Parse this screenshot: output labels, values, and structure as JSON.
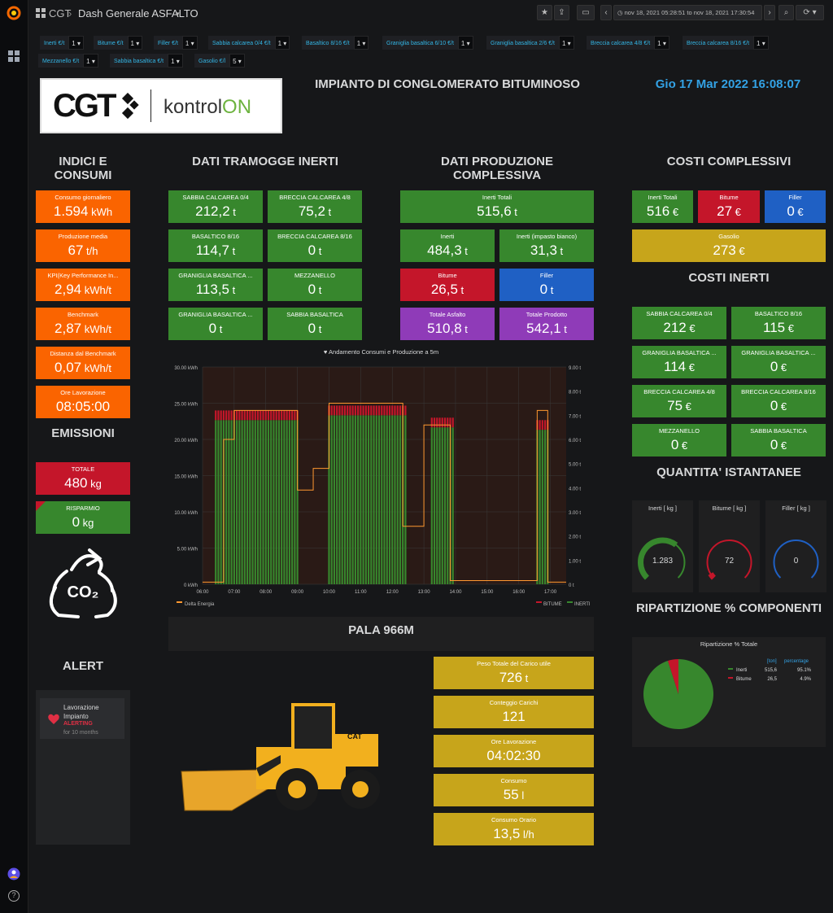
{
  "nav": {
    "folder": "CGT",
    "dashboard": "Dash Generale ASFALTO",
    "time_range": "nov 18, 2021 05:28:51 to nov 18, 2021 17:30:54"
  },
  "variables": [
    {
      "label": "Inerti €/t",
      "value": "1"
    },
    {
      "label": "Bitume €/t",
      "value": "1"
    },
    {
      "label": "Filler €/t",
      "value": "1"
    },
    {
      "label": "Sabbia calcarea 0/4 €/t",
      "value": "1"
    },
    {
      "label": "Basaltico 8/16 €/t",
      "value": "1"
    },
    {
      "label": "Graniglia basaltica 6/10 €/t",
      "value": "1"
    },
    {
      "label": "Graniglia basaltica 2/6 €/t",
      "value": "1"
    },
    {
      "label": "Breccia calcarea 4/8 €/t",
      "value": "1"
    },
    {
      "label": "Breccia calcarea 8/16 €/t",
      "value": "1"
    },
    {
      "label": "Mezzanello €/t",
      "value": "1"
    },
    {
      "label": "Sabbia basaltica €/t",
      "value": "1"
    },
    {
      "label": "Gasolio €/l",
      "value": "5"
    }
  ],
  "header": {
    "logo_cgt": "CGT",
    "logo_kontrol": "kontrol",
    "logo_on": "ON",
    "title": "IMPIANTO DI CONGLOMERATO BITUMINOSO",
    "datetime": "Gio 17 Mar 2022 16:08:07"
  },
  "sections": {
    "indici": "INDICI E CONSUMI",
    "tramogge": "DATI TRAMOGGE INERTI",
    "produzione": "DATI PRODUZIONE COMPLESSIVA",
    "costi": "COSTI COMPLESSIVI",
    "costi_inerti": "COSTI INERTI",
    "emissioni": "EMISSIONI",
    "alert": "ALERT",
    "quantita": "QUANTITA' ISTANTANEE",
    "ripartizione": "RIPARTIZIONE % COMPONENTI",
    "pala": "PALA 966M"
  },
  "indici": [
    {
      "label": "Consumo giornaliero",
      "value": "1.594",
      "unit": " kWh"
    },
    {
      "label": "Produzione media",
      "value": "67",
      "unit": " t/h"
    },
    {
      "label": "KPI(Key Performance In...",
      "value": "2,94",
      "unit": " kWh/t"
    },
    {
      "label": "Benchmark",
      "value": "2,87",
      "unit": " kWh/t"
    },
    {
      "label": "Distanza dal Benchmark",
      "value": "0,07",
      "unit": " kWh/t"
    },
    {
      "label": "Ore Lavorazione",
      "value": "08:05:00",
      "unit": ""
    }
  ],
  "emissioni": [
    {
      "label": "TOTALE",
      "value": "480",
      "unit": " kg"
    },
    {
      "label": "RISPARMIO",
      "value": "0",
      "unit": " kg"
    }
  ],
  "tramogge": [
    {
      "label": "SABBIA CALCAREA 0/4",
      "value": "212,2",
      "unit": " t"
    },
    {
      "label": "BRECCIA CALCAREA 4/8",
      "value": "75,2",
      "unit": " t"
    },
    {
      "label": "BASALTICO 8/16",
      "value": "114,7",
      "unit": " t"
    },
    {
      "label": "BRECCIA CALCAREA 8/16",
      "value": "0",
      "unit": " t"
    },
    {
      "label": "GRANIGLIA BASALTICA ...",
      "value": "113,5",
      "unit": " t"
    },
    {
      "label": "MEZZANELLO",
      "value": "0",
      "unit": " t"
    },
    {
      "label": "GRANIGLIA BASALTICA ...",
      "value": "0",
      "unit": " t"
    },
    {
      "label": "SABBIA BASALTICA",
      "value": "0",
      "unit": " t"
    }
  ],
  "produzione": [
    {
      "label": "Inerti Totali",
      "value": "515,6",
      "unit": " t"
    },
    {
      "label": "Inerti",
      "value": "484,3",
      "unit": " t"
    },
    {
      "label": "Inerti (impasto bianco)",
      "value": "31,3",
      "unit": " t"
    },
    {
      "label": "Bitume",
      "value": "26,5",
      "unit": " t"
    },
    {
      "label": "Filler",
      "value": "0",
      "unit": " t"
    },
    {
      "label": "Totale Asfalto",
      "value": "510,8",
      "unit": " t"
    },
    {
      "label": "Totale Prodotto",
      "value": "542,1",
      "unit": " t"
    }
  ],
  "costi": [
    {
      "label": "Inerti Totali",
      "value": "516",
      "unit": " €"
    },
    {
      "label": "Bitume",
      "value": "27",
      "unit": " €"
    },
    {
      "label": "Filler",
      "value": "0",
      "unit": " €"
    },
    {
      "label": "Gasolio",
      "value": "273",
      "unit": " €"
    }
  ],
  "costi_inerti": [
    {
      "label": "SABBIA CALCAREA 0/4",
      "value": "212",
      "unit": " €"
    },
    {
      "label": "BASALTICO 8/16",
      "value": "115",
      "unit": " €"
    },
    {
      "label": "GRANIGLIA BASALTICA ...",
      "value": "114",
      "unit": " €"
    },
    {
      "label": "GRANIGLIA BASALTICA ...",
      "value": "0",
      "unit": " €"
    },
    {
      "label": "BRECCIA CALCAREA 4/8",
      "value": "75",
      "unit": " €"
    },
    {
      "label": "BRECCIA CALCAREA 8/16",
      "value": "0",
      "unit": " €"
    },
    {
      "label": "MEZZANELLO",
      "value": "0",
      "unit": " €"
    },
    {
      "label": "SABBIA BASALTICA",
      "value": "0",
      "unit": " €"
    }
  ],
  "gauges": [
    {
      "label": "Inerti [ kg ]",
      "value": "1.283",
      "fraction": 0.64,
      "color": "#37872d"
    },
    {
      "label": "Bitume [ kg ]",
      "value": "72",
      "fraction": 0.05,
      "color": "#c4162a"
    },
    {
      "label": "Filler [ kg ]",
      "value": "0",
      "fraction": 0,
      "color": "#1f60c4"
    }
  ],
  "pala": [
    {
      "label": "Peso Totale del Carico utile",
      "value": "726",
      "unit": " t"
    },
    {
      "label": "Conteggio Carichi",
      "value": "121",
      "unit": ""
    },
    {
      "label": "Ore Lavorazione",
      "value": "04:02:30",
      "unit": ""
    },
    {
      "label": "Consumo",
      "value": "55",
      "unit": " l"
    },
    {
      "label": "Consumo Orario",
      "value": "13,5",
      "unit": " l/h"
    }
  ],
  "alert": {
    "name": "Lavorazione Impianto",
    "state": "ALERTING",
    "since": "for 10 months"
  },
  "chart_data": [
    {
      "type": "bar",
      "title": "Andamento Consumi e Produzione a 5m",
      "x": [
        "06:00",
        "07:00",
        "08:00",
        "09:00",
        "10:00",
        "11:00",
        "12:00",
        "13:00",
        "14:00",
        "15:00",
        "16:00",
        "17:00"
      ],
      "yleft": {
        "ticks": [
          "0 kWh",
          "5.00 kWh",
          "10.00 kWh",
          "15.00 kWh",
          "20.00 kWh",
          "25.00 kWh",
          "30.00 kWh"
        ],
        "lim": [
          0,
          30
        ]
      },
      "yright": {
        "ticks": [
          "0 t",
          "1.00 t",
          "2.00 t",
          "3.00 t",
          "4.00 t",
          "5.00 t",
          "6.00 t",
          "7.00 t",
          "8.00 t",
          "9.00 t"
        ],
        "lim": [
          0,
          9
        ]
      },
      "legend_left": [
        "Delta Energia"
      ],
      "legend_right": [
        "BITUME",
        "INERTI"
      ],
      "series": [
        {
          "name": "Delta Energia",
          "kind": "line",
          "axis": "left",
          "color": "#ff9830",
          "segments": [
            {
              "from": "06:00",
              "to": "06:40",
              "value": 0.3
            },
            {
              "from": "06:40",
              "to": "07:00",
              "value": 20
            },
            {
              "from": "07:00",
              "to": "09:00",
              "value": 24
            },
            {
              "from": "09:00",
              "to": "09:30",
              "value": 13
            },
            {
              "from": "09:30",
              "to": "10:00",
              "value": 16
            },
            {
              "from": "10:00",
              "to": "12:20",
              "value": 25
            },
            {
              "from": "12:20",
              "to": "13:00",
              "value": 8
            },
            {
              "from": "13:00",
              "to": "13:50",
              "value": 22
            },
            {
              "from": "13:50",
              "to": "16:35",
              "value": 0.5
            },
            {
              "from": "16:35",
              "to": "16:55",
              "value": 24
            },
            {
              "from": "16:55",
              "to": "17:30",
              "value": 0.3
            }
          ]
        },
        {
          "name": "INERTI",
          "kind": "bar",
          "axis": "right",
          "color": "#37872d",
          "segments": [
            {
              "from": "06:25",
              "to": "09:00",
              "value": 6.8
            },
            {
              "from": "10:00",
              "to": "12:25",
              "value": 7.0
            },
            {
              "from": "13:15",
              "to": "13:55",
              "value": 6.5
            },
            {
              "from": "16:35",
              "to": "16:55",
              "value": 6.4
            }
          ]
        },
        {
          "name": "BITUME",
          "kind": "bar",
          "axis": "right",
          "color": "#c4162a",
          "segments": [
            {
              "from": "06:25",
              "to": "09:00",
              "value": 0.4
            },
            {
              "from": "10:00",
              "to": "12:25",
              "value": 0.4
            },
            {
              "from": "13:15",
              "to": "13:55",
              "value": 0.4
            },
            {
              "from": "16:35",
              "to": "16:55",
              "value": 0.4
            }
          ]
        }
      ]
    },
    {
      "type": "pie",
      "title": "Ripartizione % Totale",
      "columns": [
        "[ton]",
        "percentage"
      ],
      "slices": [
        {
          "name": "Inerti",
          "value": 515.6,
          "display": "515,6",
          "percent": "95.1%",
          "color": "#37872d"
        },
        {
          "name": "Bitume",
          "value": 26.5,
          "display": "26,5",
          "percent": "4.9%",
          "color": "#c4162a"
        }
      ]
    }
  ]
}
